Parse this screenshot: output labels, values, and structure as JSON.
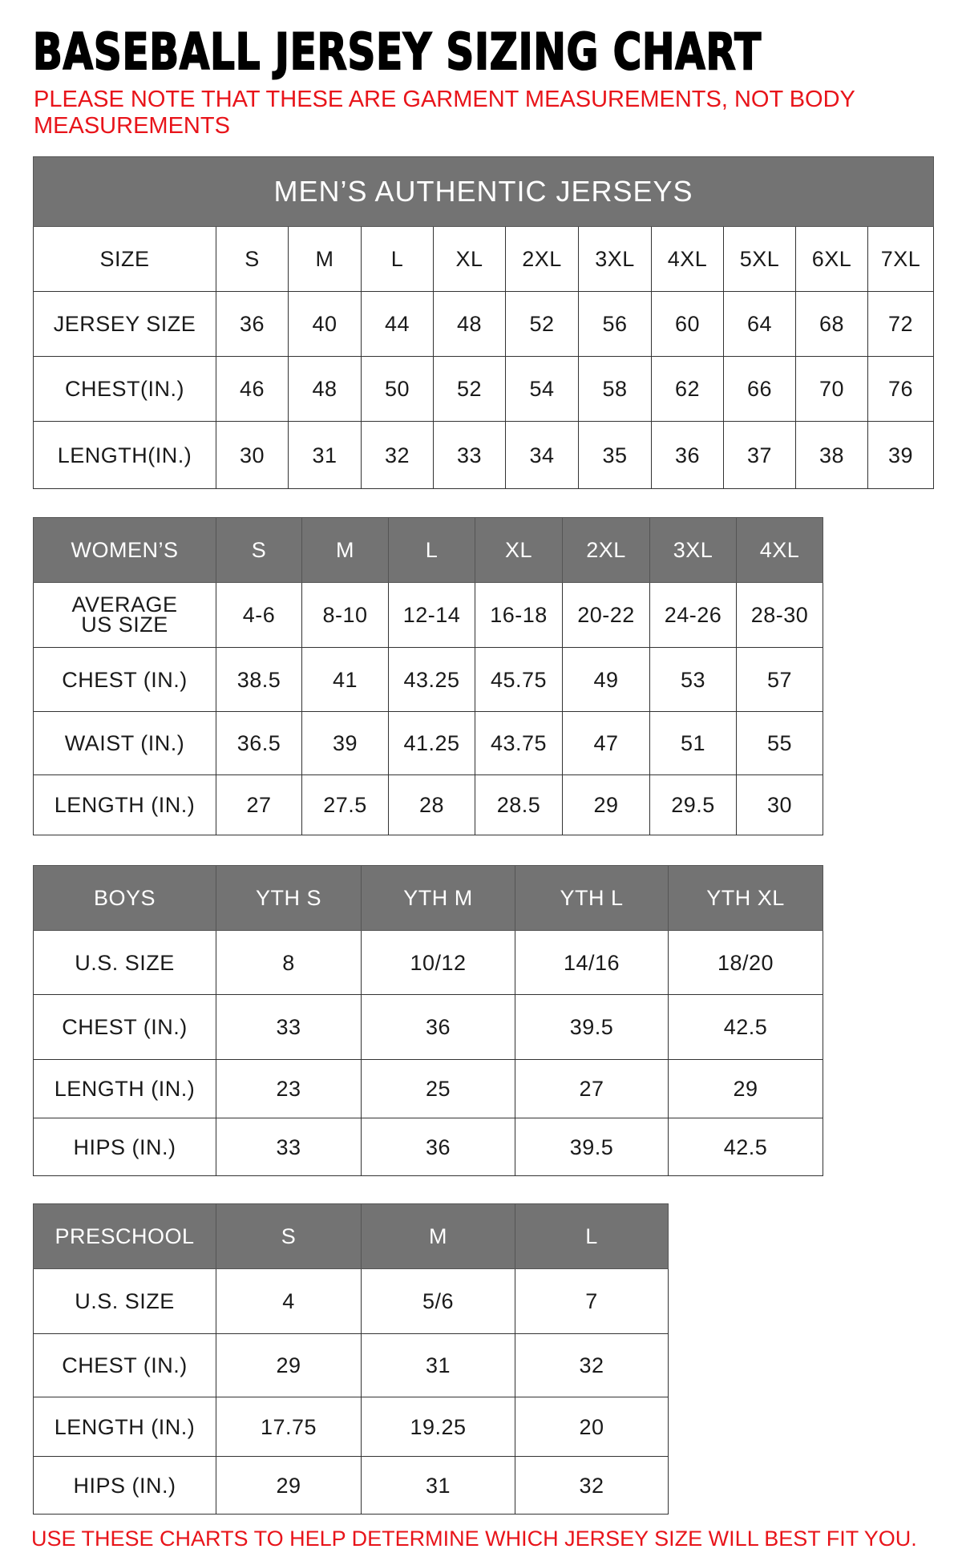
{
  "title": "BASEBALL JERSEY SIZING CHART",
  "note": "PLEASE NOTE THAT THESE ARE GARMENT MEASUREMENTS, NOT BODY MEASUREMENTS",
  "footer": "USE THESE CHARTS TO HELP DETERMINE WHICH JERSEY SIZE WILL BEST FIT YOU.",
  "colors": {
    "header_bg": "#737373",
    "note_red": "#e8141a"
  },
  "tables": [
    {
      "id": "mens",
      "caption": "MEN’S AUTHENTIC JERSEYS",
      "header": [
        "SIZE",
        "S",
        "M",
        "L",
        "XL",
        "2XL",
        "3XL",
        "4XL",
        "5XL",
        "6XL",
        "7XL"
      ],
      "header_style": "plain",
      "rows": [
        [
          "JERSEY SIZE",
          "36",
          "40",
          "44",
          "48",
          "52",
          "56",
          "60",
          "64",
          "68",
          "72"
        ],
        [
          "CHEST(IN.)",
          "46",
          "48",
          "50",
          "52",
          "54",
          "58",
          "62",
          "66",
          "70",
          "76"
        ],
        [
          "LENGTH(IN.)",
          "30",
          "31",
          "32",
          "33",
          "34",
          "35",
          "36",
          "37",
          "38",
          "39"
        ]
      ]
    },
    {
      "id": "womens",
      "header": [
        "WOMEN’S",
        "S",
        "M",
        "L",
        "XL",
        "2XL",
        "3XL",
        "4XL"
      ],
      "header_style": "gray",
      "rows": [
        [
          "AVERAGE US SIZE",
          "4-6",
          "8-10",
          "12-14",
          "16-18",
          "20-22",
          "24-26",
          "28-30"
        ],
        [
          "CHEST (IN.)",
          "38.5",
          "41",
          "43.25",
          "45.75",
          "49",
          "53",
          "57"
        ],
        [
          "WAIST (IN.)",
          "36.5",
          "39",
          "41.25",
          "43.75",
          "47",
          "51",
          "55"
        ],
        [
          "LENGTH (IN.)",
          "27",
          "27.5",
          "28",
          "28.5",
          "29",
          "29.5",
          "30"
        ]
      ]
    },
    {
      "id": "boys",
      "header": [
        "BOYS",
        "YTH S",
        "YTH M",
        "YTH L",
        "YTH XL"
      ],
      "header_style": "gray",
      "rows": [
        [
          "U.S. SIZE",
          "8",
          "10/12",
          "14/16",
          "18/20"
        ],
        [
          "CHEST (IN.)",
          "33",
          "36",
          "39.5",
          "42.5"
        ],
        [
          "LENGTH (IN.)",
          "23",
          "25",
          "27",
          "29"
        ],
        [
          "HIPS (IN.)",
          "33",
          "36",
          "39.5",
          "42.5"
        ]
      ]
    },
    {
      "id": "preschool",
      "header": [
        "PRESCHOOL",
        "S",
        "M",
        "L"
      ],
      "header_style": "gray",
      "rows": [
        [
          "U.S. SIZE",
          "4",
          "5/6",
          "7"
        ],
        [
          "CHEST (IN.)",
          "29",
          "31",
          "32"
        ],
        [
          "LENGTH (IN.)",
          "17.75",
          "19.25",
          "20"
        ],
        [
          "HIPS (IN.)",
          "29",
          "31",
          "32"
        ]
      ]
    }
  ]
}
